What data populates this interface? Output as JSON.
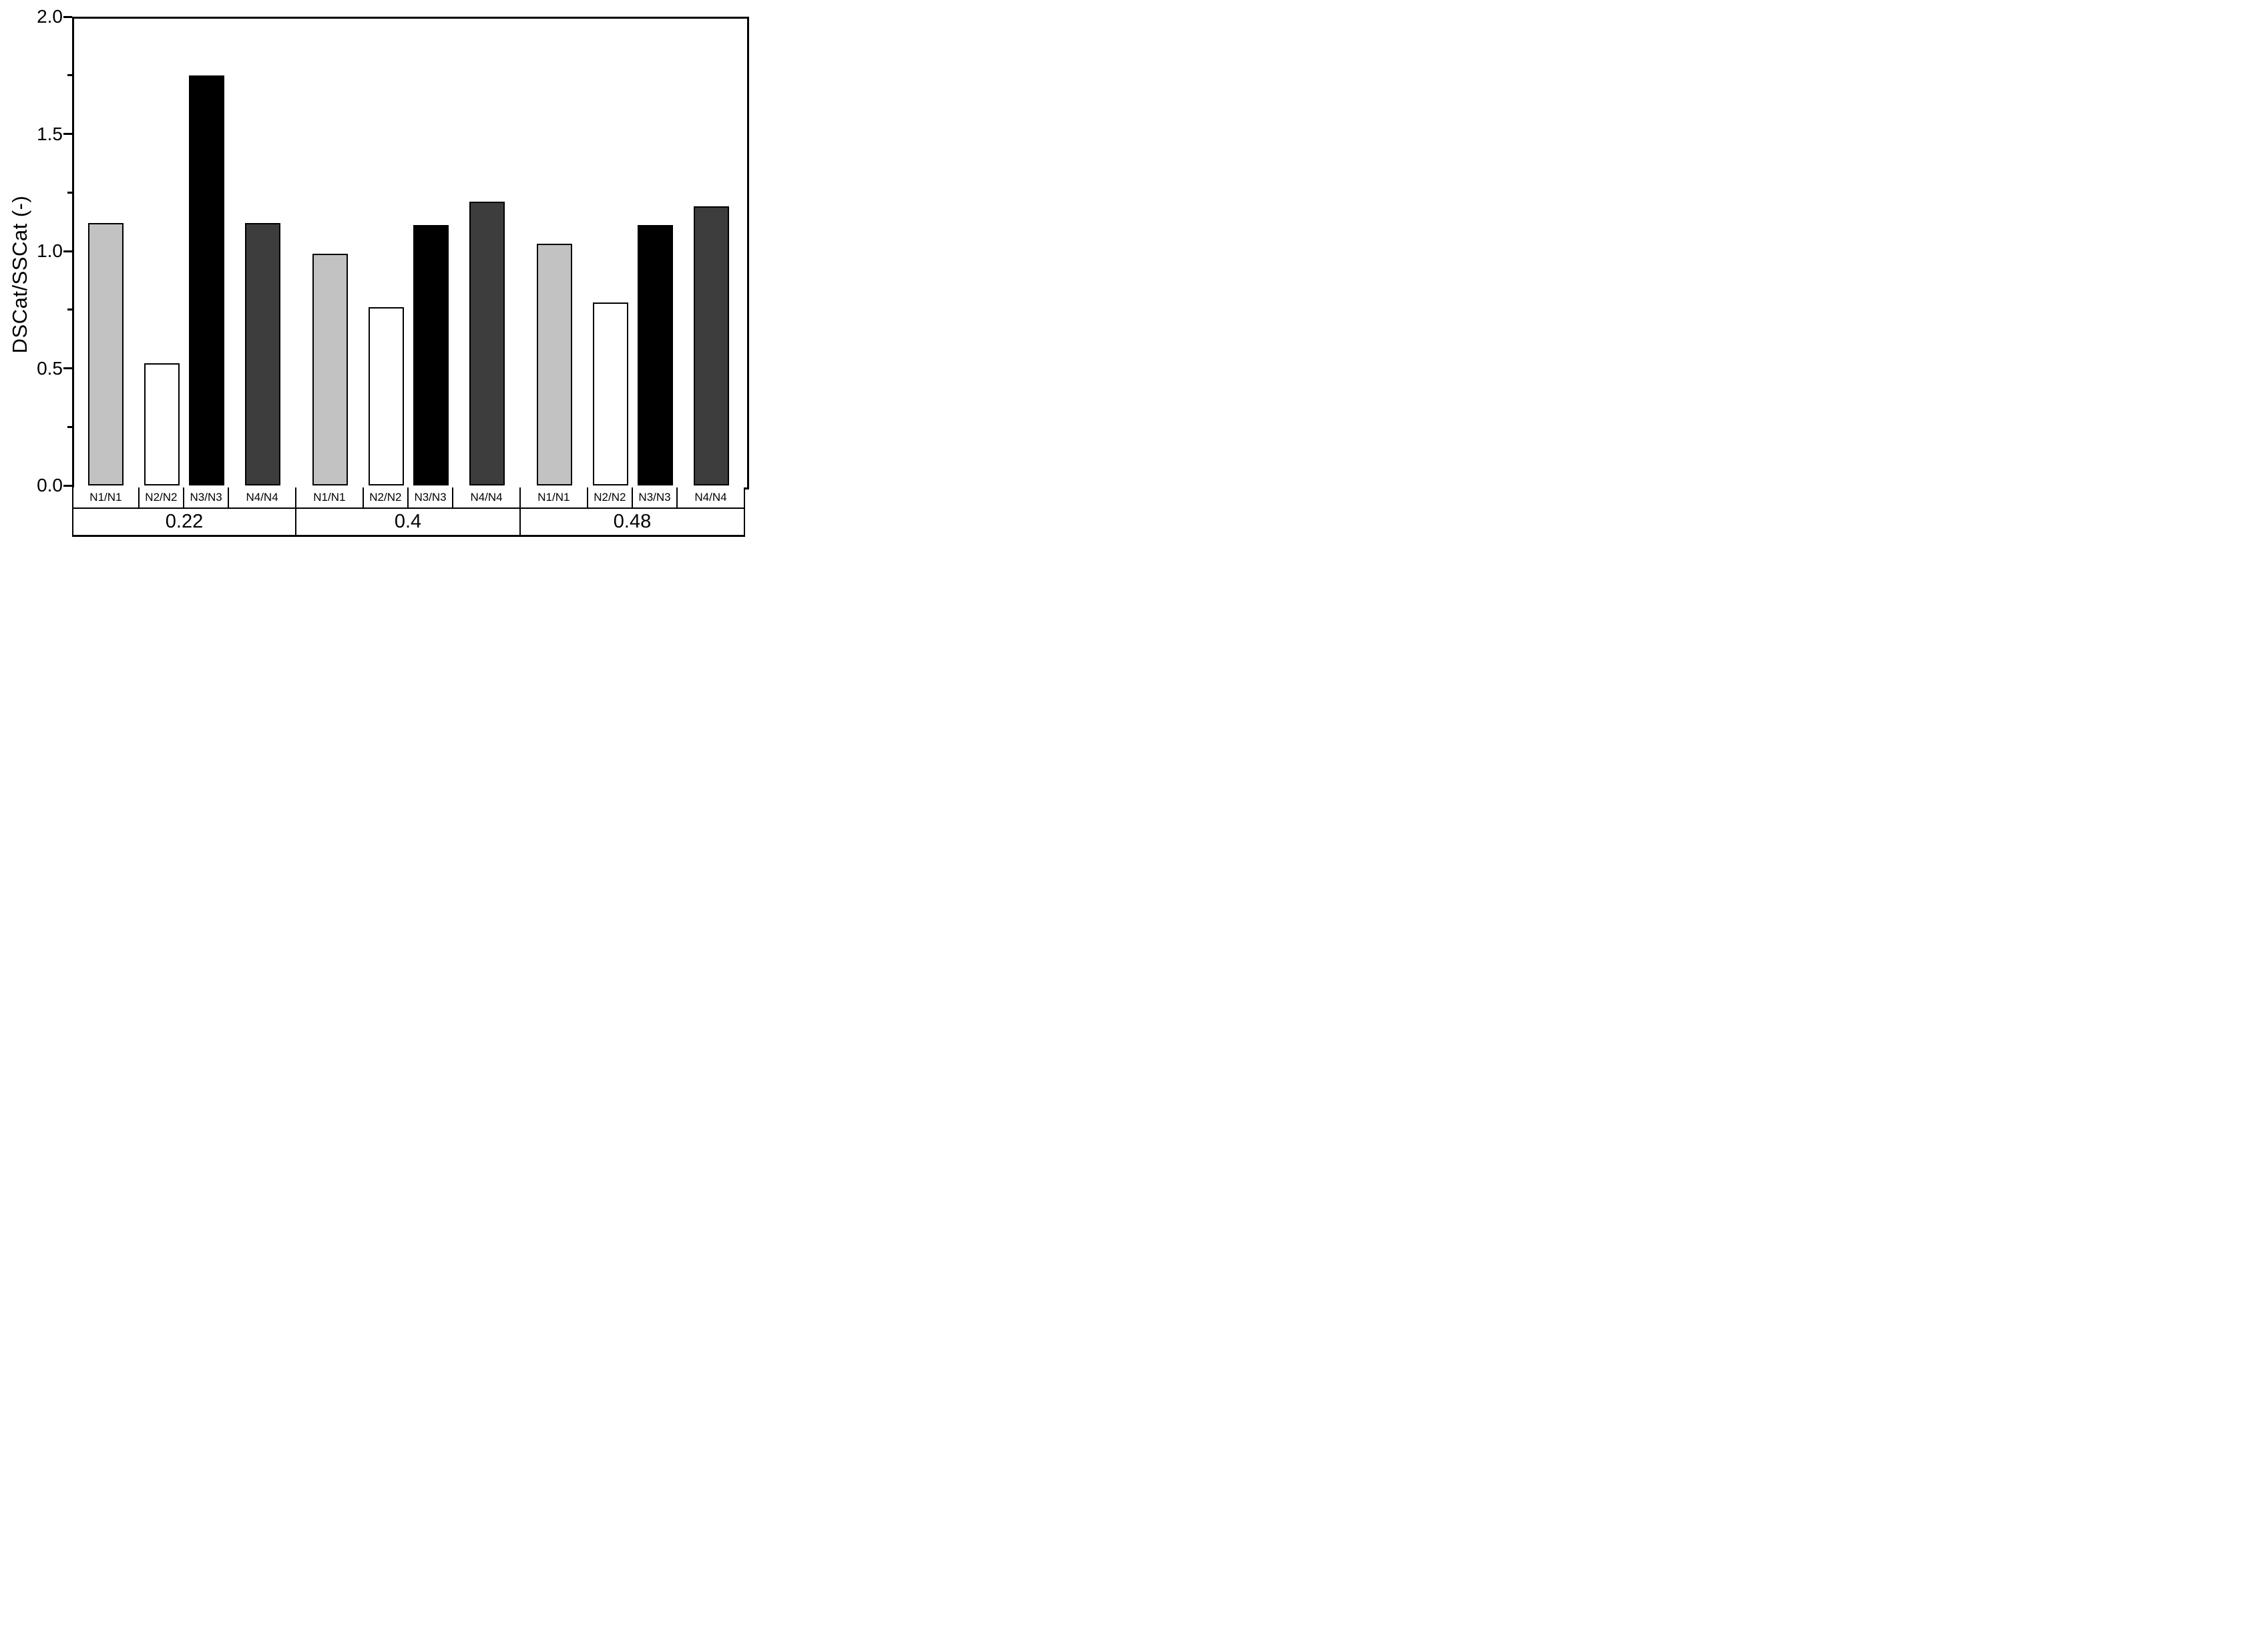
{
  "chart_data": {
    "type": "bar",
    "title": "",
    "xlabel": "",
    "ylabel": "DSCat/SSCat (-)",
    "ylim": [
      0,
      2
    ],
    "ytick_values": [
      0,
      0.5,
      1,
      1.5,
      2
    ],
    "ytick_labels": [
      "0.0",
      "0.5",
      "1.0",
      "1.5",
      "2.0"
    ],
    "minor_tick_values": [
      0.25,
      0.75,
      1.25,
      1.75
    ],
    "grid": false,
    "legend_position": "none",
    "series": [
      {
        "name": "N1/N1",
        "fill": "#c2c2c2",
        "stroke": "#000000"
      },
      {
        "name": "N2/N2",
        "fill": "#ffffff",
        "stroke": "#000000"
      },
      {
        "name": "N3/N3",
        "fill": "#000000",
        "stroke": "#000000"
      },
      {
        "name": "N4/N4",
        "fill": "#3d3d3d",
        "stroke": "#000000"
      }
    ],
    "groups": [
      {
        "label": "0.22",
        "values": [
          1.12,
          0.52,
          1.75,
          1.12
        ]
      },
      {
        "label": "0.4",
        "values": [
          0.99,
          0.76,
          1.11,
          1.21
        ]
      },
      {
        "label": "0.48",
        "values": [
          1.03,
          0.78,
          1.11,
          1.19
        ]
      }
    ]
  }
}
